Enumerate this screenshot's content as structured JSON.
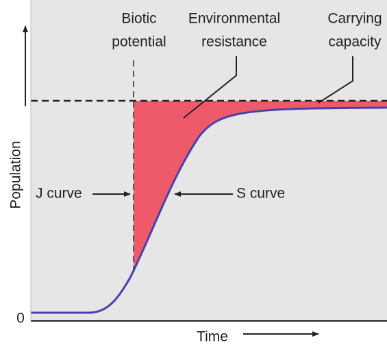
{
  "diagram": {
    "labels": {
      "biotic_potential": [
        "Biotic",
        "potential"
      ],
      "environmental_resistance": [
        "Environmental",
        "resistance"
      ],
      "carrying_capacity": [
        "Carrying",
        "capacity"
      ],
      "j_curve": "J curve",
      "s_curve": "S curve"
    },
    "axes": {
      "y_label": "Population",
      "x_label": "Time",
      "origin": "0"
    }
  }
}
